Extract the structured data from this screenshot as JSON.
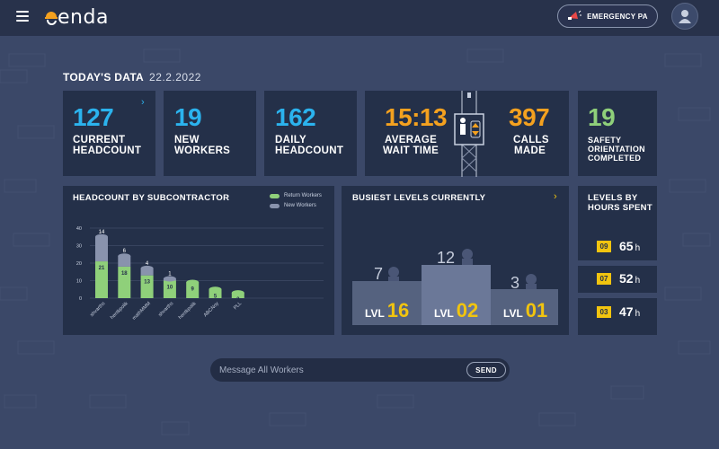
{
  "header": {
    "logo_text": "enda",
    "emergency_label": "EMERGENCY PA",
    "menu_icon": "menu-icon",
    "avatar_icon": "user-avatar-icon"
  },
  "today": {
    "title": "TODAY'S DATA",
    "date": "22.2.2022"
  },
  "stats": {
    "current_headcount": {
      "value": "127",
      "label_1": "CURRENT",
      "label_2": "HEADCOUNT"
    },
    "new_workers": {
      "value": "19",
      "label_1": "NEW",
      "label_2": "WORKERS"
    },
    "daily_headcount": {
      "value": "162",
      "label_1": "DAILY",
      "label_2": "HEADCOUNT"
    },
    "average_wait": {
      "value": "15:13",
      "label_1": "AVERAGE",
      "label_2": "WAIT TIME"
    },
    "calls_made": {
      "value": "397",
      "label_1": "CALLS",
      "label_2": "MADE"
    },
    "safety": {
      "value": "19",
      "label_1": "SAFETY",
      "label_2": "ORIENTATION",
      "label_3": "COMPLETED"
    }
  },
  "colors": {
    "accent_blue": "#2bb3ee",
    "accent_orange": "#f4a11f",
    "accent_yellow": "#f1c40f",
    "accent_green": "#8fd07a",
    "new_workers_bar": "#8993ad",
    "card_bg": "#243049",
    "page_bg": "#3b4868"
  },
  "headcount_panel": {
    "title": "HEADCOUNT BY SUBCONTRACTOR",
    "legend_return": "Return Workers",
    "legend_new": "New Workers"
  },
  "chart_data": {
    "type": "bar",
    "stacked": true,
    "categories": [
      "shvarths",
      "hentkpolik",
      "mathMMM",
      "shvarths",
      "hentkpolik",
      "ABCNoy",
      "PLL"
    ],
    "series": [
      {
        "name": "Return Workers",
        "values": [
          21,
          18,
          13,
          10,
          9,
          5,
          3
        ]
      },
      {
        "name": "New Workers",
        "values": [
          14,
          6,
          4,
          1,
          0,
          0,
          0
        ]
      }
    ],
    "yticks": [
      0,
      10,
      20,
      30,
      40
    ],
    "ylim": [
      0,
      40
    ],
    "grid": true,
    "legend": "top-right"
  },
  "busiest": {
    "title": "BUSIEST LEVELS CURRENTLY",
    "levels": [
      {
        "prefix": "LVL",
        "level": "16",
        "count": "7"
      },
      {
        "prefix": "LVL",
        "level": "02",
        "count": "12"
      },
      {
        "prefix": "LVL",
        "level": "01",
        "count": "3"
      }
    ]
  },
  "hours": {
    "title_1": "LEVELS BY",
    "title_2": "HOURS SPENT",
    "rows": [
      {
        "level": "09",
        "hours": "65",
        "unit": "h"
      },
      {
        "level": "07",
        "hours": "52",
        "unit": "h"
      },
      {
        "level": "03",
        "hours": "47",
        "unit": "h"
      }
    ]
  },
  "message": {
    "placeholder": "Message All Workers",
    "send_label": "SEND"
  }
}
